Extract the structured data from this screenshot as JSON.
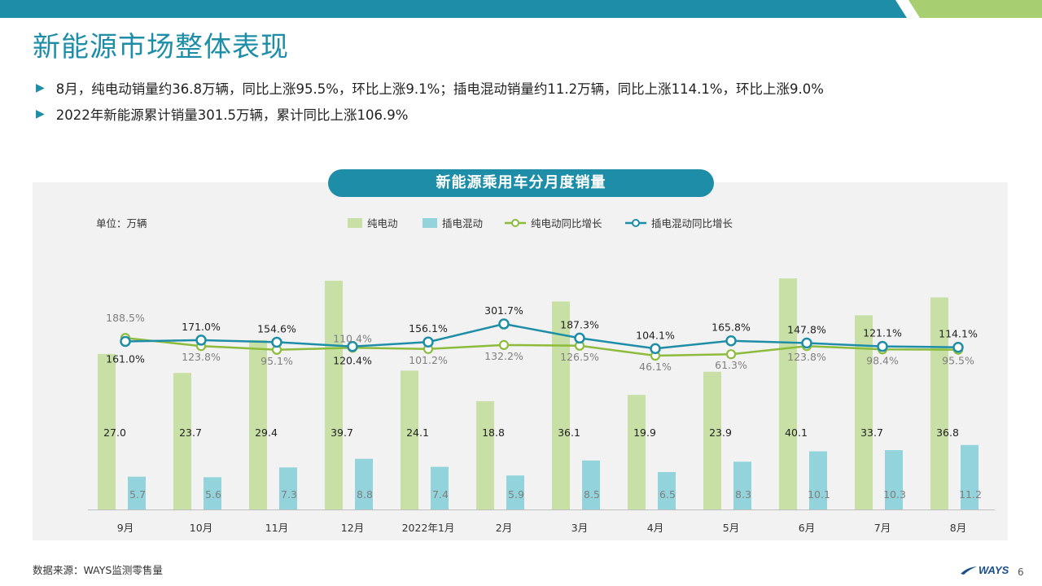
{
  "page": {
    "title": "新能源市场整体表现",
    "bullets": [
      "8月，纯电动销量约36.8万辆，同比上涨95.5%，环比上涨9.1%；插电混动销量约11.2万辆，同比上涨114.1%，环比上涨9.0%",
      "2022年新能源累计销量301.5万辆，累计同比上涨106.9%"
    ],
    "source": "数据来源：WAYS监测零售量",
    "logo_text": "WAYS",
    "page_number": "6"
  },
  "colors": {
    "accent": "#1e8ea8",
    "ev_bar": "#c8e0a6",
    "phev_bar": "#93d4dc",
    "ev_line": "#8dbb3c",
    "phev_line": "#1e8ea8",
    "topbar_blue": "#1e8ea8",
    "topbar_green": "#a7cf71"
  },
  "chart_data": {
    "type": "bar",
    "title": "新能源乘用车分月度销量",
    "unit_label": "单位：万辆",
    "categories": [
      "9月",
      "10月",
      "11月",
      "12月",
      "2022年1月",
      "2月",
      "3月",
      "4月",
      "5月",
      "6月",
      "7月",
      "8月"
    ],
    "series": [
      {
        "name": "纯电动",
        "kind": "bar",
        "values": [
          27.0,
          23.7,
          29.4,
          39.7,
          24.1,
          18.8,
          36.1,
          19.9,
          23.9,
          40.1,
          33.7,
          36.8
        ]
      },
      {
        "name": "插电混动",
        "kind": "bar",
        "values": [
          5.7,
          5.6,
          7.3,
          8.8,
          7.4,
          5.9,
          8.5,
          6.5,
          8.3,
          10.1,
          10.3,
          11.2
        ]
      },
      {
        "name": "纯电动同比增长",
        "kind": "line",
        "unit": "%",
        "values": [
          188.5,
          123.8,
          95.1,
          110.4,
          101.2,
          132.2,
          126.5,
          46.1,
          61.3,
          123.8,
          98.4,
          95.5
        ]
      },
      {
        "name": "插电混动同比增长",
        "kind": "line",
        "unit": "%",
        "values": [
          161.0,
          171.0,
          154.6,
          120.4,
          156.1,
          301.7,
          187.3,
          104.1,
          165.8,
          147.8,
          121.1,
          114.1
        ]
      }
    ],
    "ev_labels": [
      "27.0",
      "23.7",
      "29.4",
      "39.7",
      "24.1",
      "18.8",
      "36.1",
      "19.9",
      "23.9",
      "40.1",
      "33.7",
      "36.8"
    ],
    "phev_labels": [
      "5.7",
      "5.6",
      "7.3",
      "8.8",
      "7.4",
      "5.9",
      "8.5",
      "6.5",
      "8.3",
      "10.1",
      "10.3",
      "11.2"
    ],
    "ev_growth_labels": [
      "188.5%",
      "123.8%",
      "95.1%",
      "110.4%",
      "101.2%",
      "132.2%",
      "126.5%",
      "46.1%",
      "61.3%",
      "123.8%",
      "98.4%",
      "95.5%"
    ],
    "phev_growth_labels": [
      "161.0%",
      "171.0%",
      "154.6%",
      "120.4%",
      "156.1%",
      "301.7%",
      "187.3%",
      "104.1%",
      "165.8%",
      "147.8%",
      "121.1%",
      "114.1%"
    ],
    "legend_position": "top",
    "grid": false
  }
}
